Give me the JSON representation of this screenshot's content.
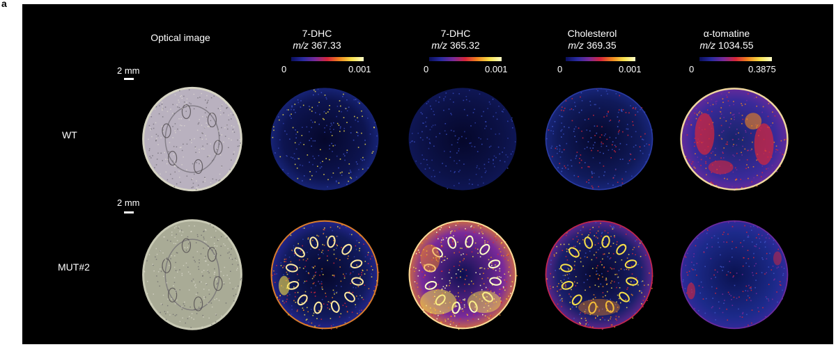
{
  "panel_label": "a",
  "columns": [
    {
      "title": "Optical image",
      "mz_prefix": "",
      "mz_value": "",
      "cb_min": "",
      "cb_max": ""
    },
    {
      "title": "7-DHC",
      "mz_prefix": "m/z",
      "mz_value": "367.33",
      "cb_min": "0",
      "cb_max": "0.001"
    },
    {
      "title": "7-DHC",
      "mz_prefix": "m/z",
      "mz_value": "365.32",
      "cb_min": "0",
      "cb_max": "0.001"
    },
    {
      "title": "Cholesterol",
      "mz_prefix": "m/z",
      "mz_value": "369.35",
      "cb_min": "0",
      "cb_max": "0.001"
    },
    {
      "title": "α-tomatine",
      "mz_prefix": "m/z",
      "mz_value": "1034.55",
      "cb_min": "0",
      "cb_max": "0.3875"
    }
  ],
  "rows": [
    {
      "label": "WT",
      "scale_text": "2 mm"
    },
    {
      "label": "MUT#2",
      "scale_text": "2 mm"
    }
  ],
  "colors": {
    "background": "#000000",
    "colormap": [
      "#0a0f5c",
      "#2a2ba0",
      "#7a2a9a",
      "#d8263a",
      "#f0861e",
      "#f7e04a",
      "#ffffc8"
    ],
    "optical_wt": "#b9b1bf",
    "optical_mut": "#a9ab96"
  }
}
